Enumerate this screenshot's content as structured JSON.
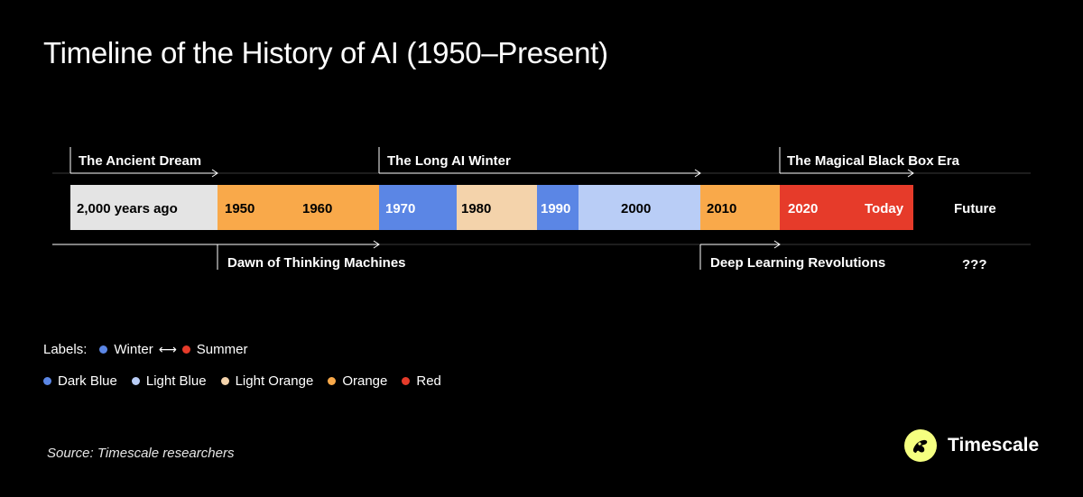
{
  "title": "Timeline of the History of AI (1950–Present)",
  "colors": {
    "background": "#000000",
    "gray": "#e4e4e4",
    "dark_blue": "#5b86e5",
    "light_blue": "#b9cdf6",
    "light_orange": "#f4d3ab",
    "orange": "#f9a94a",
    "red": "#e63b2a",
    "line": "#3a3a3a"
  },
  "timeline": {
    "segments": [
      {
        "color": "gray",
        "labels": [
          "2,000 years ago"
        ]
      },
      {
        "color": "orange",
        "labels": [
          "1950",
          "1960"
        ]
      },
      {
        "color": "dark_blue",
        "labels": [
          "1970"
        ]
      },
      {
        "color": "light_orange",
        "labels": [
          "1980"
        ]
      },
      {
        "color": "dark_blue",
        "labels": [
          "1990"
        ]
      },
      {
        "color": "light_blue",
        "labels": [
          "2000"
        ]
      },
      {
        "color": "orange",
        "labels": [
          "2010"
        ]
      },
      {
        "color": "red",
        "labels": [
          "2020",
          "Today"
        ]
      }
    ],
    "future_label": "Future",
    "future_note": "???"
  },
  "eras_top": [
    {
      "label": "The Ancient Dream"
    },
    {
      "label": "The Long AI Winter"
    },
    {
      "label": "The Magical Black Box Era"
    }
  ],
  "eras_bottom": [
    {
      "label": "Dawn of Thinking Machines"
    },
    {
      "label": "Deep Learning Revolutions"
    }
  ],
  "legend": {
    "labels_title": "Labels:",
    "winter": "Winter",
    "arrow": "⟷",
    "summer": "Summer",
    "items": [
      {
        "label": "Dark Blue",
        "color": "dark_blue"
      },
      {
        "label": "Light Blue",
        "color": "light_blue"
      },
      {
        "label": "Light Orange",
        "color": "light_orange"
      },
      {
        "label": "Orange",
        "color": "orange"
      },
      {
        "label": "Red",
        "color": "red"
      }
    ]
  },
  "source": "Source: Timescale researchers",
  "brand": {
    "name": "Timescale",
    "logo_icon": "timescale-logo-icon"
  }
}
